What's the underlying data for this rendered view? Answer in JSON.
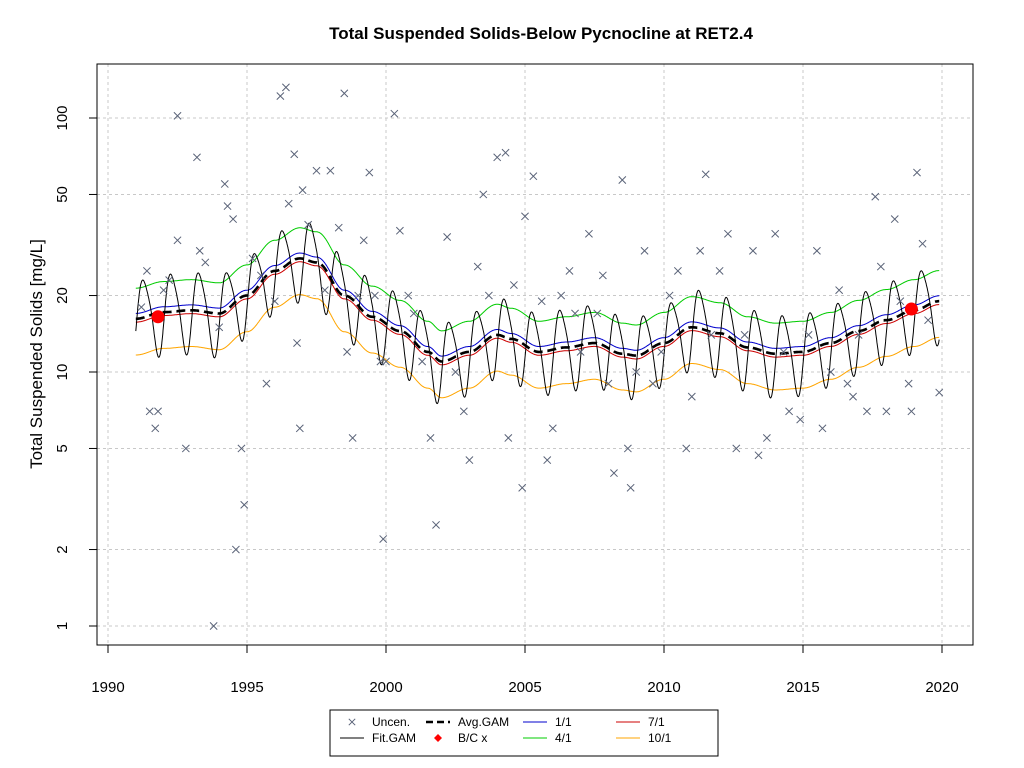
{
  "chart_data": {
    "type": "scatter",
    "title": "Total Suspended Solids-Below Pycnocline at RET2.4",
    "xlabel": "",
    "ylabel": "Total Suspended Solids [mg/L]",
    "xlim": [
      1990,
      2020
    ],
    "ylim": [
      1,
      150
    ],
    "y_scale": "log",
    "grid": true,
    "x_ticks": [
      "1990",
      "1995",
      "2000",
      "2005",
      "2010",
      "2015",
      "2020"
    ],
    "y_ticks": [
      "1",
      "2",
      "5",
      "10",
      "20",
      "50",
      "100"
    ],
    "colors": {
      "uncen": "#5a6378",
      "fit_gam": "#000000",
      "avg_gam": "#000000",
      "bc": "#ff0000",
      "d1_1": "#0000cc",
      "d4_1": "#00cc00",
      "d7_1": "#cc0000",
      "d10_1": "#ffa500"
    },
    "legend": {
      "position": "bottom",
      "entries": [
        {
          "key": "uncen",
          "label": "Uncen."
        },
        {
          "key": "avg",
          "label": "Avg.GAM"
        },
        {
          "key": "d1",
          "label": "1/1"
        },
        {
          "key": "d7",
          "label": "7/1"
        },
        {
          "key": "fit",
          "label": "Fit.GAM"
        },
        {
          "key": "bc",
          "label": "B/C x"
        },
        {
          "key": "d4",
          "label": "4/1"
        },
        {
          "key": "d10",
          "label": "10/1"
        }
      ]
    },
    "avg_gam": [
      [
        1991.0,
        16.2
      ],
      [
        1992.0,
        17.2
      ],
      [
        1993.0,
        17.5
      ],
      [
        1994.0,
        17.0
      ],
      [
        1995.0,
        20
      ],
      [
        1996.0,
        25
      ],
      [
        1996.9,
        28
      ],
      [
        1997.5,
        27
      ],
      [
        1998.5,
        20
      ],
      [
        1999.5,
        16.5
      ],
      [
        2000.5,
        14.5
      ],
      [
        2001.5,
        12
      ],
      [
        2002.0,
        11
      ],
      [
        2003.0,
        12
      ],
      [
        2004.0,
        14
      ],
      [
        2004.5,
        13.5
      ],
      [
        2005.5,
        12
      ],
      [
        2006.5,
        12.5
      ],
      [
        2007.5,
        13
      ],
      [
        2008.5,
        11.8
      ],
      [
        2009.0,
        11.6
      ],
      [
        2010.0,
        13
      ],
      [
        2011.0,
        15
      ],
      [
        2012.0,
        14.2
      ],
      [
        2013.0,
        12.5
      ],
      [
        2014.0,
        11.8
      ],
      [
        2015.0,
        12
      ],
      [
        2016.0,
        13
      ],
      [
        2017.0,
        14.5
      ],
      [
        2018.0,
        16
      ],
      [
        2019.0,
        17.5
      ],
      [
        2019.9,
        19
      ]
    ],
    "b_c_points": [
      [
        1991.8,
        16.5
      ],
      [
        2018.9,
        17.7
      ]
    ],
    "uncen_points": [
      [
        1991.2,
        18
      ],
      [
        1991.4,
        25
      ],
      [
        1991.5,
        7
      ],
      [
        1991.7,
        6
      ],
      [
        1991.8,
        7
      ],
      [
        1992.0,
        21
      ],
      [
        1992.2,
        23
      ],
      [
        1992.5,
        33
      ],
      [
        1992.5,
        102
      ],
      [
        1992.8,
        5
      ],
      [
        1993.2,
        70
      ],
      [
        1993.3,
        30
      ],
      [
        1993.5,
        27
      ],
      [
        1993.8,
        1
      ],
      [
        1994.0,
        15
      ],
      [
        1994.2,
        55
      ],
      [
        1994.3,
        45
      ],
      [
        1994.5,
        40
      ],
      [
        1994.6,
        2
      ],
      [
        1994.8,
        5
      ],
      [
        1994.9,
        3
      ],
      [
        1995.2,
        28
      ],
      [
        1995.5,
        24
      ],
      [
        1995.7,
        9
      ],
      [
        1996.0,
        19
      ],
      [
        1996.2,
        122
      ],
      [
        1996.4,
        132
      ],
      [
        1996.5,
        46
      ],
      [
        1996.7,
        72
      ],
      [
        1996.8,
        13
      ],
      [
        1996.9,
        6
      ],
      [
        1997.0,
        52
      ],
      [
        1997.2,
        38
      ],
      [
        1997.5,
        62
      ],
      [
        1997.8,
        21
      ],
      [
        1998.0,
        62
      ],
      [
        1998.3,
        37
      ],
      [
        1998.5,
        125
      ],
      [
        1998.6,
        12
      ],
      [
        1998.8,
        5.5
      ],
      [
        1999.0,
        20
      ],
      [
        1999.2,
        33
      ],
      [
        1999.4,
        61
      ],
      [
        1999.6,
        20
      ],
      [
        1999.8,
        11
      ],
      [
        1999.9,
        2.2
      ],
      [
        2000.0,
        11
      ],
      [
        2000.3,
        104
      ],
      [
        2000.5,
        36
      ],
      [
        2000.8,
        20
      ],
      [
        2001.0,
        17
      ],
      [
        2001.3,
        11
      ],
      [
        2001.6,
        5.5
      ],
      [
        2001.8,
        2.5
      ],
      [
        2002.2,
        34
      ],
      [
        2002.5,
        10
      ],
      [
        2002.8,
        7
      ],
      [
        2003.0,
        4.5
      ],
      [
        2003.3,
        26
      ],
      [
        2003.5,
        50
      ],
      [
        2003.7,
        20
      ],
      [
        2004.0,
        70
      ],
      [
        2004.3,
        73
      ],
      [
        2004.4,
        5.5
      ],
      [
        2004.6,
        22
      ],
      [
        2004.9,
        3.5
      ],
      [
        2005.0,
        41
      ],
      [
        2005.3,
        59
      ],
      [
        2005.6,
        19
      ],
      [
        2005.8,
        4.5
      ],
      [
        2006.0,
        6
      ],
      [
        2006.3,
        20
      ],
      [
        2006.6,
        25
      ],
      [
        2006.8,
        17
      ],
      [
        2007.0,
        12
      ],
      [
        2007.3,
        35
      ],
      [
        2007.6,
        17
      ],
      [
        2007.8,
        24
      ],
      [
        2008.0,
        9
      ],
      [
        2008.2,
        4
      ],
      [
        2008.5,
        57
      ],
      [
        2008.7,
        5
      ],
      [
        2008.8,
        3.5
      ],
      [
        2009.0,
        10
      ],
      [
        2009.3,
        30
      ],
      [
        2009.6,
        9
      ],
      [
        2009.9,
        12
      ],
      [
        2010.2,
        20
      ],
      [
        2010.5,
        25
      ],
      [
        2010.8,
        5
      ],
      [
        2011.0,
        8
      ],
      [
        2011.3,
        30
      ],
      [
        2011.5,
        60
      ],
      [
        2011.7,
        14
      ],
      [
        2012.0,
        25
      ],
      [
        2012.3,
        35
      ],
      [
        2012.6,
        5
      ],
      [
        2012.9,
        14
      ],
      [
        2013.2,
        30
      ],
      [
        2013.4,
        4.7
      ],
      [
        2013.7,
        5.5
      ],
      [
        2014.0,
        35
      ],
      [
        2014.3,
        12
      ],
      [
        2014.5,
        7
      ],
      [
        2014.9,
        6.5
      ],
      [
        2015.2,
        14
      ],
      [
        2015.5,
        30
      ],
      [
        2015.7,
        6
      ],
      [
        2016.0,
        10
      ],
      [
        2016.3,
        21
      ],
      [
        2016.6,
        9
      ],
      [
        2016.8,
        8
      ],
      [
        2017.0,
        14
      ],
      [
        2017.3,
        7
      ],
      [
        2017.6,
        49
      ],
      [
        2017.8,
        26
      ],
      [
        2018.0,
        7
      ],
      [
        2018.3,
        40
      ],
      [
        2018.5,
        19
      ],
      [
        2018.8,
        9
      ],
      [
        2018.9,
        7
      ],
      [
        2019.1,
        61
      ],
      [
        2019.3,
        32
      ],
      [
        2019.5,
        16
      ],
      [
        2019.9,
        8.3
      ]
    ]
  }
}
